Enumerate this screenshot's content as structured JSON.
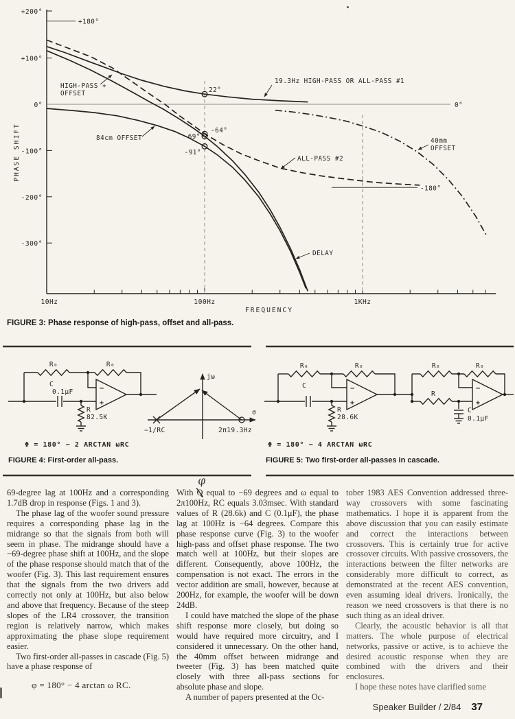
{
  "figure3": {
    "caption": "FIGURE 3: Phase response of high-pass, offset and all-pass.",
    "ylabel": "PHASE SHIFT",
    "xlabel": "FREQUENCY",
    "yticks": [
      "+200°",
      "+100°",
      "0°",
      "-100°",
      "-200°",
      "-300°"
    ],
    "xticks": [
      "10Hz",
      "100Hz",
      "1KHz"
    ],
    "labels": {
      "plus180": "+180°",
      "zero_right": "0°",
      "minus180": "-180°",
      "v22": "22°",
      "v64": "-64°",
      "v69": "-69°",
      "v91": "-91°",
      "hp1": "HIGH-PASS +",
      "hp2": "OFFSET",
      "off84": "84cm OFFSET",
      "ap1": "19.3Hz HIGH-PASS OR ALL-PASS #1",
      "ap2": "ALL-PASS #2",
      "off40a": "40mm",
      "off40b": "OFFSET",
      "delay": "DELAY"
    }
  },
  "chart_data": {
    "type": "line",
    "title": "Phase response of high-pass, offset and all-pass",
    "x_scale": "log",
    "xlabel": "FREQUENCY",
    "ylabel": "PHASE SHIFT",
    "xlim_hz": [
      10,
      6800
    ],
    "ylim_deg": [
      -410,
      210
    ],
    "grid": false,
    "reference_lines_deg": [
      180,
      0,
      -180
    ],
    "vertical_guides_hz": [
      100,
      1000
    ],
    "point_markers": [
      {
        "hz": 100,
        "deg": 22,
        "label": "22°",
        "series": "19.3Hz HIGH-PASS OR ALL-PASS #1"
      },
      {
        "hz": 100,
        "deg": -64,
        "label": "-64°",
        "series": "ALL-PASS #2"
      },
      {
        "hz": 100,
        "deg": -69,
        "label": "-69°",
        "series": "HIGH-PASS + OFFSET"
      },
      {
        "hz": 100,
        "deg": -91,
        "label": "-91°",
        "series": "84cm OFFSET"
      }
    ],
    "series": [
      {
        "name": "19.3Hz HIGH-PASS OR ALL-PASS #1",
        "style": "solid",
        "points": [
          [
            10,
            125
          ],
          [
            13,
            112
          ],
          [
            17,
            97
          ],
          [
            22,
            83
          ],
          [
            30,
            66
          ],
          [
            40,
            52
          ],
          [
            55,
            39
          ],
          [
            75,
            29
          ],
          [
            100,
            22
          ],
          [
            140,
            16
          ],
          [
            200,
            11
          ],
          [
            300,
            7.5
          ],
          [
            450,
            5
          ]
        ]
      },
      {
        "name": "HIGH-PASS + OFFSET",
        "style": "solid",
        "points": [
          [
            10,
            116
          ],
          [
            14,
            95
          ],
          [
            19,
            74
          ],
          [
            26,
            50
          ],
          [
            35,
            26
          ],
          [
            45,
            5
          ],
          [
            55,
            -11
          ],
          [
            70,
            -33
          ],
          [
            85,
            -52
          ],
          [
            100,
            -69
          ],
          [
            120,
            -91
          ],
          [
            150,
            -122
          ],
          [
            180,
            -152
          ],
          [
            220,
            -190
          ],
          [
            260,
            -228
          ],
          [
            300,
            -266
          ],
          [
            350,
            -312
          ],
          [
            400,
            -358
          ],
          [
            450,
            -404
          ]
        ]
      },
      {
        "name": "84cm OFFSET (DELAY)",
        "style": "solid",
        "points": [
          [
            10,
            -9
          ],
          [
            15,
            -14
          ],
          [
            20,
            -18
          ],
          [
            28,
            -25
          ],
          [
            38,
            -35
          ],
          [
            50,
            -46
          ],
          [
            65,
            -59
          ],
          [
            80,
            -73
          ],
          [
            100,
            -91
          ],
          [
            120,
            -109
          ],
          [
            150,
            -136
          ],
          [
            180,
            -164
          ],
          [
            220,
            -200
          ],
          [
            260,
            -237
          ],
          [
            300,
            -273
          ],
          [
            350,
            -318
          ],
          [
            400,
            -364
          ],
          [
            438,
            -398
          ]
        ]
      },
      {
        "name": "ALL-PASS #2",
        "style": "dashed",
        "points": [
          [
            10,
            139
          ],
          [
            14,
            120
          ],
          [
            19,
            103
          ],
          [
            26,
            79
          ],
          [
            35,
            48
          ],
          [
            45,
            22
          ],
          [
            56,
            0
          ],
          [
            70,
            -26
          ],
          [
            85,
            -46
          ],
          [
            100,
            -64
          ],
          [
            130,
            -87
          ],
          [
            170,
            -107
          ],
          [
            220,
            -122
          ],
          [
            300,
            -138
          ],
          [
            400,
            -147
          ],
          [
            550,
            -155
          ],
          [
            800,
            -162
          ],
          [
            1200,
            -169
          ],
          [
            1800,
            -173
          ],
          [
            2300,
            -175
          ]
        ]
      },
      {
        "name": "40mm OFFSET",
        "style": "dashdot",
        "points": [
          [
            280,
            -13
          ],
          [
            350,
            -16
          ],
          [
            450,
            -21
          ],
          [
            600,
            -28
          ],
          [
            800,
            -37
          ],
          [
            1000,
            -47
          ],
          [
            1300,
            -60
          ],
          [
            1700,
            -79
          ],
          [
            2200,
            -102
          ],
          [
            2800,
            -130
          ],
          [
            3500,
            -163
          ],
          [
            4300,
            -200
          ],
          [
            5200,
            -242
          ],
          [
            6100,
            -284
          ]
        ]
      }
    ]
  },
  "figure4": {
    "caption": "FIGURE 4: First-order all-pass.",
    "formula": "Φ = 180° − 2 ARCTAN ωRC",
    "labels": {
      "r0_1": "R₀",
      "r0_2": "R₀",
      "c": "C",
      "cval": "0.1μF",
      "r": "R",
      "rval": "82.5K",
      "minus": "−",
      "plus": "+"
    },
    "polezero": {
      "jw": "jω",
      "sigma": "σ",
      "pole": "−1/RC",
      "zero": "2π19.3Hz"
    }
  },
  "figure5": {
    "caption": "FIGURE 5: Two first-order all-passes in cascade.",
    "formula": "Φ = 180° − 4 ARCTAN ωRC",
    "stage1": {
      "r0_1": "R₀",
      "r0_2": "R₀",
      "c": "C",
      "r": "R",
      "rval": "28.6K",
      "minus": "−",
      "plus": "+"
    },
    "stage2": {
      "r0_1": "R₀",
      "r0_2": "R₀",
      "r": "R",
      "c": "C",
      "cval": "0.1μF",
      "minus": "−",
      "plus": "+"
    }
  },
  "article": {
    "col1": {
      "p0": "69-degree lag at 100Hz and a corresponding 1.7dB drop in response (Figs. 1 and 3).",
      "p1": "The phase lag of the woofer sound pressure requires a corresponding phase lag in the midrange so that the signals from both will seem in phase. The midrange should have a −69-degree phase shift at 100Hz, and the slope of the phase response should match that of the woofer (Fig. 3). This last requirement ensures that the signals from the two drivers add correctly not only at 100Hz, but also below and above that frequency. Because of the steep slopes of the LR4 crossover, the transition region is relatively narrow, which makes approximating the phase slope requirement easier.",
      "p2": "Two first-order all-passes in cascade (Fig. 5) have a phase response of",
      "formula": "φ = 180° − 4 arctan ω RC."
    },
    "col2": {
      "handwritten": "φ",
      "p0_pre": "With ",
      "p0_q": "Q",
      "p0_post": " equal to −69 degrees and ω equal to 2π100Hz, RC equals 3.03msec. With standard values of R (28.6k) and C (0.1μF), the phase lag at 100Hz is −64 degrees. Compare this phase response curve (Fig. 3) to the woofer high-pass and offset phase response. The two match well at 100Hz, but their slopes are different. Consequently, above 100Hz, the compensation is not exact. The errors in the vector addition are small, however, because at 200Hz, for example, the woofer will be down 24dB.",
      "p1": "I could have matched the slope of the phase shift response more closely, but doing so would have required more circuitry, and I considered it unnecessary. On the other hand, the 40mm offset between midrange and tweeter (Fig. 3) has been matched quite closely with three all-pass sections for absolute phase and slope.",
      "p2": "A number of papers presented at the Oc-"
    },
    "col3": {
      "p0": "tober 1983 AES Convention addressed three-way crossovers with some fascinating mathematics. I hope it is apparent from the above discussion that you can easily estimate and correct the interactions between crossovers. This is certainly true for active crossover circuits. With passive crossovers, the interactions between the filter networks are considerably more difficult to correct, as demonstrated at the recent AES convention, even assuming ideal drivers. Ironically, the reason we need crossovers is that there is no such thing as an ideal driver.",
      "p1": "Clearly, the acoustic behavior is all that matters. The whole purpose of electrical networks, passive or active, is to achieve the desired acoustic response when they are combined with the drivers and their enclosures.",
      "p2": "I hope these notes have clarified some"
    }
  },
  "footer": {
    "journal": "Speaker Builder / 2/84",
    "page_number": "37"
  }
}
